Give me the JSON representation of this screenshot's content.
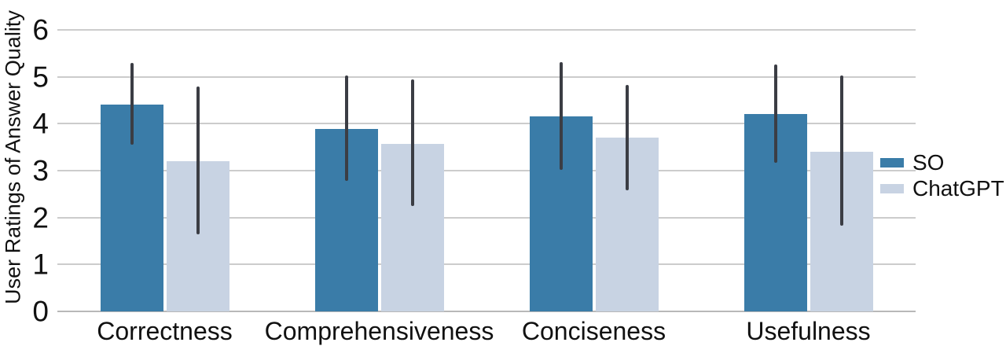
{
  "chart_data": {
    "type": "bar",
    "title": "",
    "xlabel": "",
    "ylabel": "User Ratings of Answer Quality",
    "categories": [
      "Correctness",
      "Comprehensiveness",
      "Conciseness",
      "Usefulness"
    ],
    "series": [
      {
        "name": "SO",
        "color": "#3a7ca8",
        "values": [
          4.4,
          3.88,
          4.15,
          4.2
        ],
        "error_low": [
          3.55,
          2.78,
          3.02,
          3.16
        ],
        "error_high": [
          5.3,
          5.02,
          5.32,
          5.27
        ]
      },
      {
        "name": "ChatGPT",
        "color": "#c8d3e3",
        "values": [
          3.2,
          3.57,
          3.7,
          3.4
        ],
        "error_low": [
          1.65,
          2.25,
          2.58,
          1.82
        ],
        "error_high": [
          4.8,
          4.95,
          4.83,
          5.02
        ]
      }
    ],
    "yticks": [
      "0",
      "1",
      "2",
      "3",
      "4",
      "5",
      "6"
    ],
    "ylim": [
      0,
      6.64
    ],
    "grid": true,
    "legend_position": "right",
    "colors": {
      "grid": "#cccccc",
      "baseline": "#b8b8b8",
      "error_bar": "#3b3d44",
      "text": "#111111"
    }
  }
}
